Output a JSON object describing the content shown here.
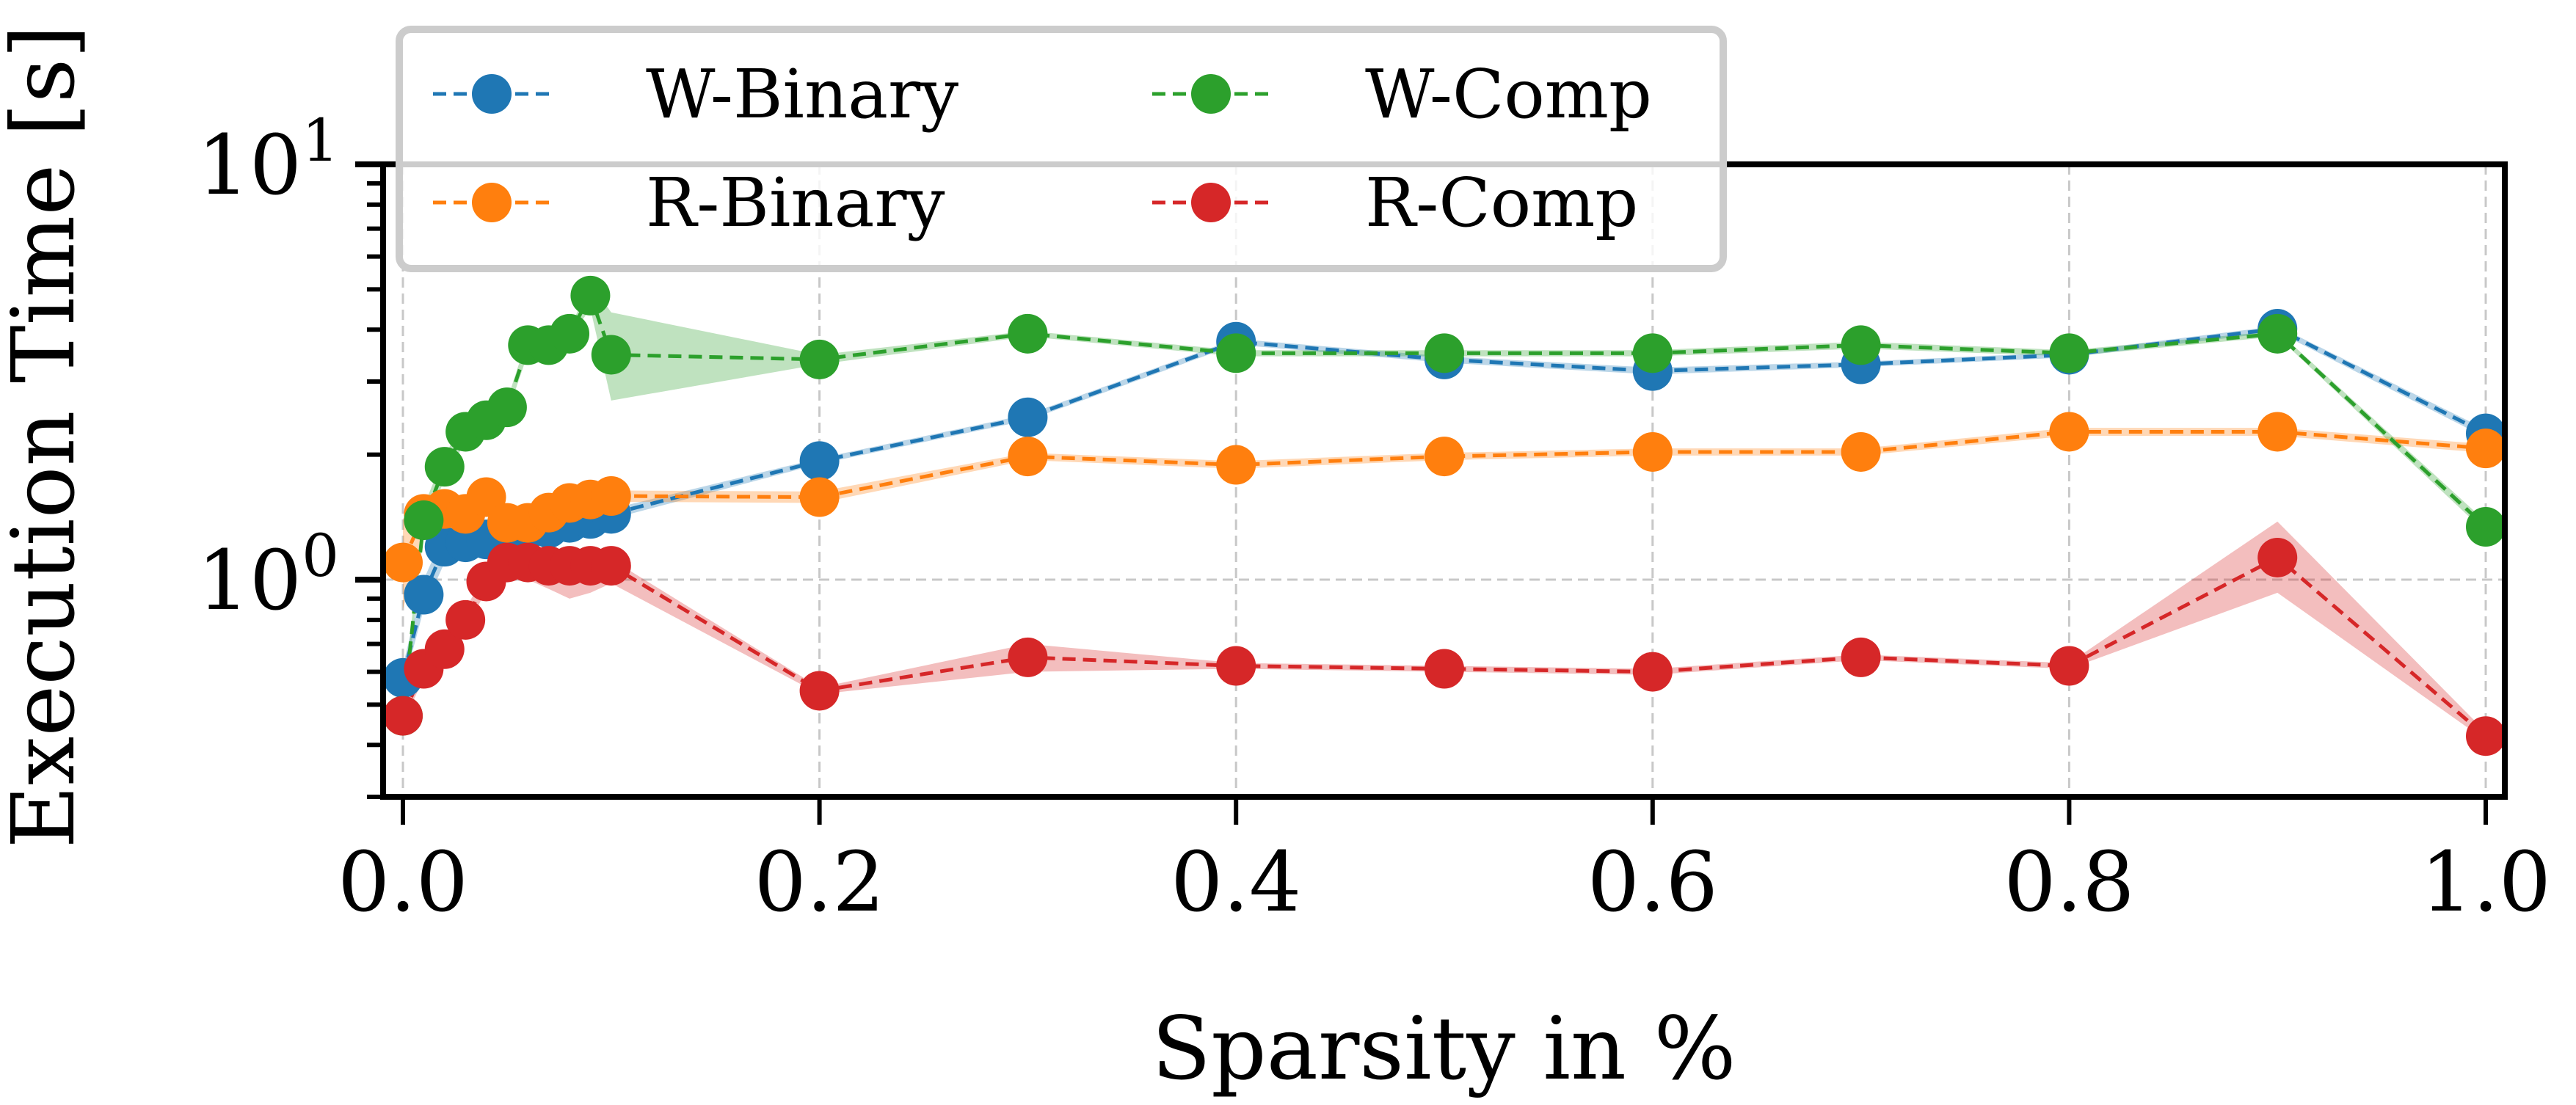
{
  "chart_data": {
    "type": "line",
    "title": "",
    "xlabel": "Sparsity in %",
    "ylabel": "Execution Time [s]",
    "xlim": [
      -0.003,
      1.01
    ],
    "ylim": [
      0.3,
      10
    ],
    "yscale": "log",
    "grid": true,
    "legend_position": "top-left",
    "x_ticks": [
      0.0,
      0.2,
      0.4,
      0.6,
      0.8,
      1.0
    ],
    "x_tick_labels": [
      "0.0",
      "0.2",
      "0.4",
      "0.6",
      "0.8",
      "1.0"
    ],
    "y_tick_labels": [
      {
        "base": "10",
        "exp": "0",
        "value": 1
      },
      {
        "base": "10",
        "exp": "1",
        "value": 10
      }
    ],
    "x": [
      0.0,
      0.01,
      0.02,
      0.03,
      0.04,
      0.05,
      0.06,
      0.07,
      0.08,
      0.09,
      0.1,
      0.2,
      0.3,
      0.4,
      0.5,
      0.6,
      0.7,
      0.8,
      0.9,
      1.0
    ],
    "series": [
      {
        "name": "W-Binary",
        "color": "#1f77b4",
        "values": [
          0.58,
          0.92,
          1.2,
          1.23,
          1.25,
          1.31,
          1.32,
          1.33,
          1.37,
          1.4,
          1.44,
          1.93,
          2.46,
          3.74,
          3.39,
          3.18,
          3.3,
          3.48,
          4.02,
          2.25
        ],
        "band": [
          [
            0.55,
            0.62
          ],
          [
            0.85,
            1.0
          ],
          [
            1.1,
            1.3
          ],
          [
            1.15,
            1.3
          ],
          [
            1.2,
            1.3
          ],
          [
            1.25,
            1.37
          ],
          [
            1.28,
            1.36
          ],
          [
            1.3,
            1.36
          ],
          [
            1.33,
            1.41
          ],
          [
            1.36,
            1.44
          ],
          [
            1.4,
            1.48
          ],
          [
            1.9,
            1.96
          ],
          [
            2.42,
            2.5
          ],
          [
            3.68,
            3.8
          ],
          [
            3.33,
            3.45
          ],
          [
            3.12,
            3.24
          ],
          [
            3.25,
            3.35
          ],
          [
            3.43,
            3.53
          ],
          [
            3.95,
            4.08
          ],
          [
            2.2,
            2.3
          ]
        ]
      },
      {
        "name": "R-Binary",
        "color": "#ff7f0e",
        "values": [
          1.1,
          1.44,
          1.48,
          1.44,
          1.58,
          1.37,
          1.37,
          1.45,
          1.53,
          1.56,
          1.59,
          1.58,
          1.98,
          1.89,
          1.98,
          2.03,
          2.03,
          2.27,
          2.27,
          2.07
        ],
        "band": [
          [
            0.85,
            1.4
          ],
          [
            1.3,
            1.6
          ],
          [
            1.4,
            1.56
          ],
          [
            1.38,
            1.5
          ],
          [
            1.52,
            1.64
          ],
          [
            1.32,
            1.42
          ],
          [
            1.32,
            1.42
          ],
          [
            1.4,
            1.5
          ],
          [
            1.48,
            1.58
          ],
          [
            1.52,
            1.6
          ],
          [
            1.54,
            1.64
          ],
          [
            1.53,
            1.63
          ],
          [
            1.94,
            2.02
          ],
          [
            1.85,
            1.93
          ],
          [
            1.94,
            2.02
          ],
          [
            1.99,
            2.07
          ],
          [
            1.99,
            2.07
          ],
          [
            2.22,
            2.32
          ],
          [
            2.22,
            2.32
          ],
          [
            2.02,
            2.12
          ]
        ]
      },
      {
        "name": "W-Comp",
        "color": "#2ca02c",
        "values": [
          0.47,
          1.39,
          1.87,
          2.27,
          2.42,
          2.6,
          3.67,
          3.67,
          3.91,
          4.83,
          3.48,
          3.39,
          3.91,
          3.51,
          3.51,
          3.51,
          3.67,
          3.51,
          3.91,
          1.34
        ],
        "band": [
          [
            0.45,
            0.5
          ],
          [
            1.3,
            1.5
          ],
          [
            1.75,
            2.0
          ],
          [
            2.15,
            2.4
          ],
          [
            2.3,
            2.6
          ],
          [
            2.5,
            2.7
          ],
          [
            3.5,
            3.85
          ],
          [
            3.55,
            3.8
          ],
          [
            3.8,
            4.0
          ],
          [
            4.5,
            5.2
          ],
          [
            2.7,
            4.4
          ],
          [
            3.3,
            3.48
          ],
          [
            3.85,
            3.97
          ],
          [
            3.45,
            3.57
          ],
          [
            3.45,
            3.57
          ],
          [
            3.45,
            3.57
          ],
          [
            3.6,
            3.74
          ],
          [
            3.45,
            3.57
          ],
          [
            3.85,
            3.97
          ],
          [
            1.3,
            1.38
          ]
        ]
      },
      {
        "name": "R-Comp",
        "color": "#d62728",
        "values": [
          0.47,
          0.61,
          0.68,
          0.8,
          0.99,
          1.1,
          1.1,
          1.08,
          1.08,
          1.08,
          1.08,
          0.54,
          0.65,
          0.62,
          0.61,
          0.6,
          0.65,
          0.62,
          1.13,
          0.42
        ],
        "band": [
          [
            0.45,
            0.52
          ],
          [
            0.58,
            0.66
          ],
          [
            0.64,
            0.72
          ],
          [
            0.76,
            0.85
          ],
          [
            0.94,
            1.04
          ],
          [
            1.04,
            1.15
          ],
          [
            1.0,
            1.15
          ],
          [
            0.95,
            1.12
          ],
          [
            0.9,
            1.12
          ],
          [
            0.93,
            1.12
          ],
          [
            0.98,
            1.12
          ],
          [
            0.53,
            0.55
          ],
          [
            0.6,
            0.7
          ],
          [
            0.61,
            0.63
          ],
          [
            0.6,
            0.62
          ],
          [
            0.59,
            0.61
          ],
          [
            0.64,
            0.66
          ],
          [
            0.61,
            0.63
          ],
          [
            0.93,
            1.38
          ],
          [
            0.41,
            0.43
          ]
        ]
      }
    ]
  }
}
